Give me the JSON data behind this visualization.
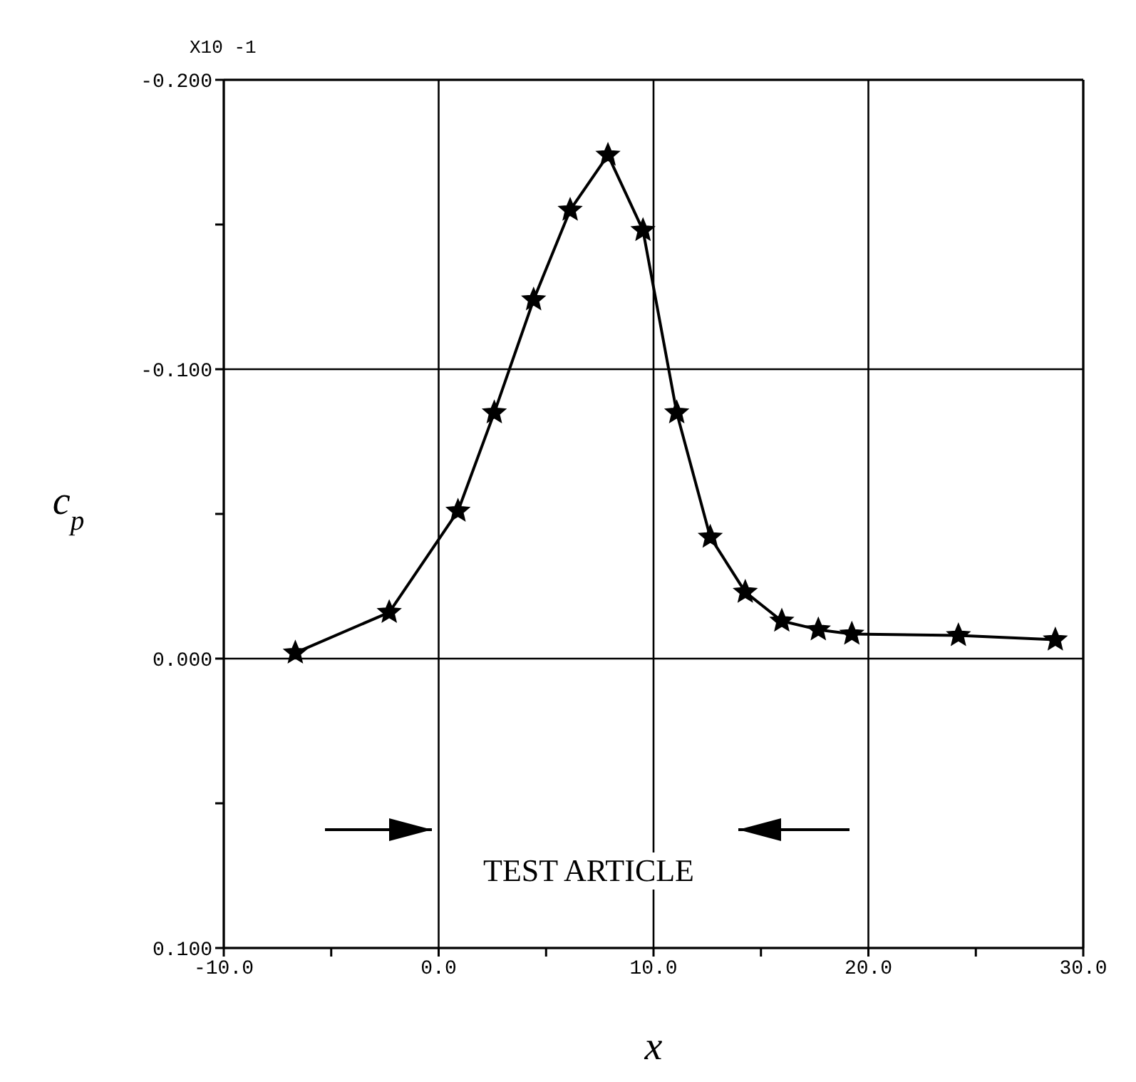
{
  "chart_data": {
    "type": "line",
    "xlabel": "x",
    "ylabel": "c$_{p}$",
    "annotations": [
      "X10 -1",
      "TEST ARTICLE"
    ],
    "x": [
      -6.67,
      -2.3,
      0.9,
      2.59,
      4.42,
      6.12,
      7.88,
      9.51,
      11.08,
      12.64,
      14.27,
      15.97,
      17.67,
      19.23,
      24.19,
      28.7
    ],
    "series": [
      {
        "color": "#000000",
        "values": [
          -0.002,
          -0.016,
          -0.051,
          -0.085,
          -0.124,
          -0.155,
          -0.174,
          -0.148,
          -0.085,
          -0.042,
          -0.023,
          -0.013,
          -0.01,
          -0.0085,
          -0.008,
          -0.0065
        ]
      }
    ],
    "xlim": [
      -10,
      30
    ],
    "ylim": [
      0.1,
      -0.2
    ],
    "xticks": [
      {
        "value": -10,
        "label": "-10.0"
      },
      {
        "value": -5,
        "label": null
      },
      {
        "value": 0,
        "label": "0.0"
      },
      {
        "value": 5,
        "label": null
      },
      {
        "value": 10,
        "label": "10.0"
      },
      {
        "value": 15,
        "label": null
      },
      {
        "value": 20,
        "label": "20.0"
      },
      {
        "value": 25,
        "label": null
      },
      {
        "value": 30,
        "label": "30.0"
      }
    ],
    "yticks": [
      {
        "value": -0.2,
        "label": "-0.200"
      },
      {
        "value": -0.15,
        "label": null
      },
      {
        "value": -0.1,
        "label": "-0.100"
      },
      {
        "value": -0.05,
        "label": null
      },
      {
        "value": 0,
        "label": "0.000"
      },
      {
        "value": 0.05,
        "label": null
      },
      {
        "value": 0.1,
        "label": "0.100"
      }
    ],
    "grid": true,
    "marker": "star",
    "line_style": "solid"
  }
}
